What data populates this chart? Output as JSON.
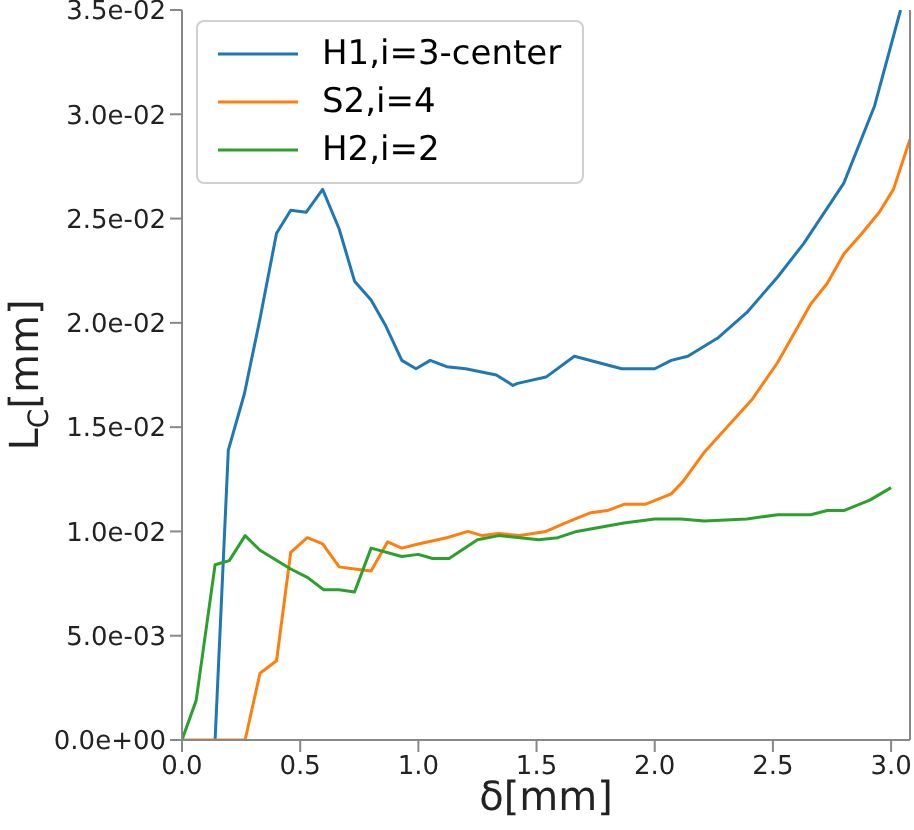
{
  "chart_data": {
    "type": "line",
    "xlabel": "δ[mm]",
    "ylabel": "L$_{C}$[mm]",
    "xlim": [
      0,
      3.08
    ],
    "ylim": [
      0,
      0.035
    ],
    "xticks": [
      {
        "value": 0,
        "label": "0.0"
      },
      {
        "value": 0.5,
        "label": "0.5"
      },
      {
        "value": 1,
        "label": "1.0"
      },
      {
        "value": 1.5,
        "label": "1.5"
      },
      {
        "value": 2,
        "label": "2.0"
      },
      {
        "value": 2.5,
        "label": "2.5"
      },
      {
        "value": 3,
        "label": "3.0"
      }
    ],
    "yticks": [
      {
        "value": 0,
        "label": "0.0e+00"
      },
      {
        "value": 0.005,
        "label": "5.0e-03"
      },
      {
        "value": 0.01,
        "label": "1.0e-02"
      },
      {
        "value": 0.015,
        "label": "1.5e-02"
      },
      {
        "value": 0.02,
        "label": "2.0e-02"
      },
      {
        "value": 0.025,
        "label": "2.5e-02"
      },
      {
        "value": 0.03,
        "label": "3.0e-02"
      },
      {
        "value": 0.035,
        "label": "3.5e-02"
      }
    ],
    "legend": "top left",
    "marker": "none",
    "line_style": "solid",
    "series": [
      {
        "name": "H1,i=3-center",
        "color": "#1f77b4",
        "x": [
          0.14,
          0.196,
          0.264,
          0.33,
          0.4,
          0.46,
          0.525,
          0.595,
          0.665,
          0.73,
          0.8,
          0.86,
          0.93,
          0.99,
          1.05,
          1.12,
          1.2,
          1.33,
          1.4,
          1.42,
          1.54,
          1.66,
          1.76,
          1.86,
          2.0,
          2.07,
          2.14,
          2.27,
          2.39,
          2.52,
          2.63,
          2.8,
          2.93,
          3.04
        ],
        "values": [
          0,
          0.0139,
          0.0166,
          0.0202,
          0.0243,
          0.0254,
          0.0253,
          0.0264,
          0.0245,
          0.022,
          0.0211,
          0.0199,
          0.0182,
          0.0178,
          0.0182,
          0.0179,
          0.0178,
          0.0175,
          0.017,
          0.0171,
          0.0174,
          0.0184,
          0.0181,
          0.0178,
          0.0178,
          0.0182,
          0.0184,
          0.0193,
          0.0205,
          0.0222,
          0.0238,
          0.0267,
          0.0304,
          0.035
        ]
      },
      {
        "name": "S2,i=4",
        "color": "#ff7f0e",
        "x": [
          0,
          0.267,
          0.33,
          0.4,
          0.46,
          0.53,
          0.595,
          0.665,
          0.73,
          0.8,
          0.87,
          0.93,
          1.0,
          1.12,
          1.21,
          1.27,
          1.34,
          1.43,
          1.54,
          1.62,
          1.73,
          1.8,
          1.87,
          1.96,
          2.07,
          2.12,
          2.21,
          2.29,
          2.41,
          2.52,
          2.66,
          2.73,
          2.8,
          2.87,
          2.95,
          3.01,
          3.08
        ],
        "values": [
          0,
          0,
          0.0032,
          0.0038,
          0.009,
          0.0097,
          0.0094,
          0.0083,
          0.0082,
          0.0081,
          0.0095,
          0.0092,
          0.0094,
          0.0097,
          0.01,
          0.0098,
          0.0099,
          0.0098,
          0.01,
          0.0104,
          0.0109,
          0.011,
          0.0113,
          0.0113,
          0.0118,
          0.0124,
          0.0138,
          0.0148,
          0.0163,
          0.0181,
          0.0209,
          0.0219,
          0.0233,
          0.0242,
          0.0253,
          0.0264,
          0.0288
        ]
      },
      {
        "name": "H2,i=2",
        "color": "#2ca02c",
        "x": [
          0,
          0.06,
          0.14,
          0.2,
          0.267,
          0.33,
          0.46,
          0.53,
          0.6,
          0.665,
          0.73,
          0.8,
          0.93,
          1.0,
          1.06,
          1.13,
          1.25,
          1.34,
          1.43,
          1.51,
          1.59,
          1.67,
          1.87,
          2.0,
          2.11,
          2.21,
          2.39,
          2.52,
          2.66,
          2.73,
          2.8,
          2.91,
          3.0
        ],
        "values": [
          0,
          0.0019,
          0.0084,
          0.0086,
          0.0098,
          0.0091,
          0.0082,
          0.0078,
          0.0072,
          0.0072,
          0.0071,
          0.0092,
          0.0088,
          0.0089,
          0.0087,
          0.0087,
          0.0096,
          0.0098,
          0.0097,
          0.0096,
          0.0097,
          0.01,
          0.0104,
          0.0106,
          0.0106,
          0.0105,
          0.0106,
          0.0108,
          0.0108,
          0.011,
          0.011,
          0.0115,
          0.0121
        ]
      }
    ]
  }
}
